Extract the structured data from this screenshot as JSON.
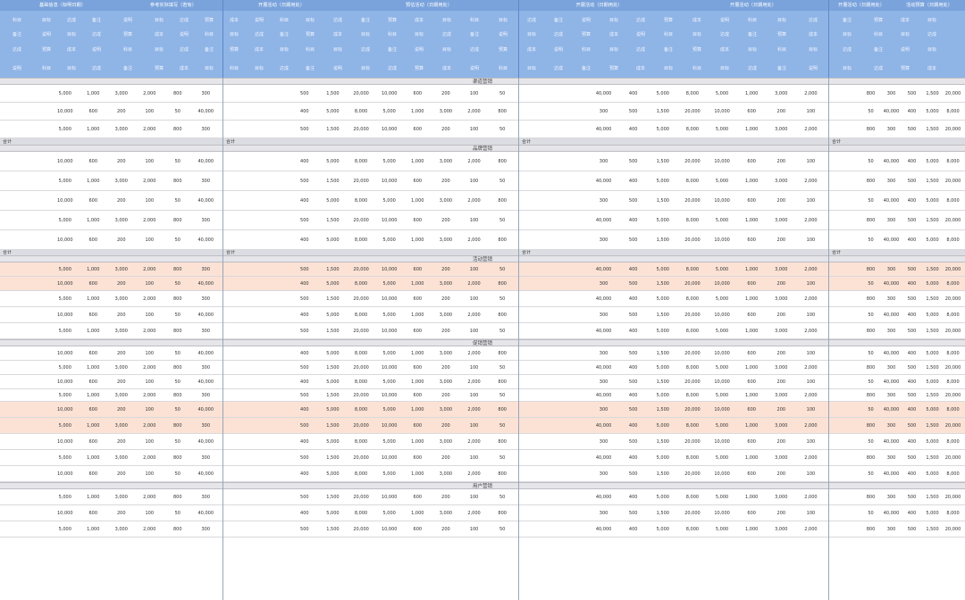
{
  "header": {
    "title_row": [
      "基础信息（标明日期）",
      "参考实际填写（若有）",
      "开展活动（日期用处）",
      "预估活动（日期用处）",
      "开展活动（日期用处）",
      "开展活动（日期用处）",
      "开展活动（日期用处）",
      "活动预算（日期用处）"
    ],
    "sub_row": [
      "科目",
      "目标",
      "达成",
      "备注",
      "说明",
      "目标",
      "达成",
      "预算",
      "成本",
      "说明",
      "科目",
      "目标",
      "达成",
      "备注",
      "预算",
      "成本",
      "目标"
    ]
  },
  "sections": [
    {
      "title": "渠道营销"
    },
    {
      "title": "品牌营销"
    },
    {
      "title": "活动营销"
    },
    {
      "title": "促销营销"
    },
    {
      "title": "用户营销"
    }
  ],
  "values": [
    "5,000",
    "1,000",
    "3,000",
    "2,000",
    "800",
    "300",
    "500",
    "1,500",
    "20,000",
    "10,000",
    "600",
    "200",
    "100",
    "50",
    "40,000",
    "400",
    "5,000",
    "8,000"
  ],
  "totals_label": "合计"
}
